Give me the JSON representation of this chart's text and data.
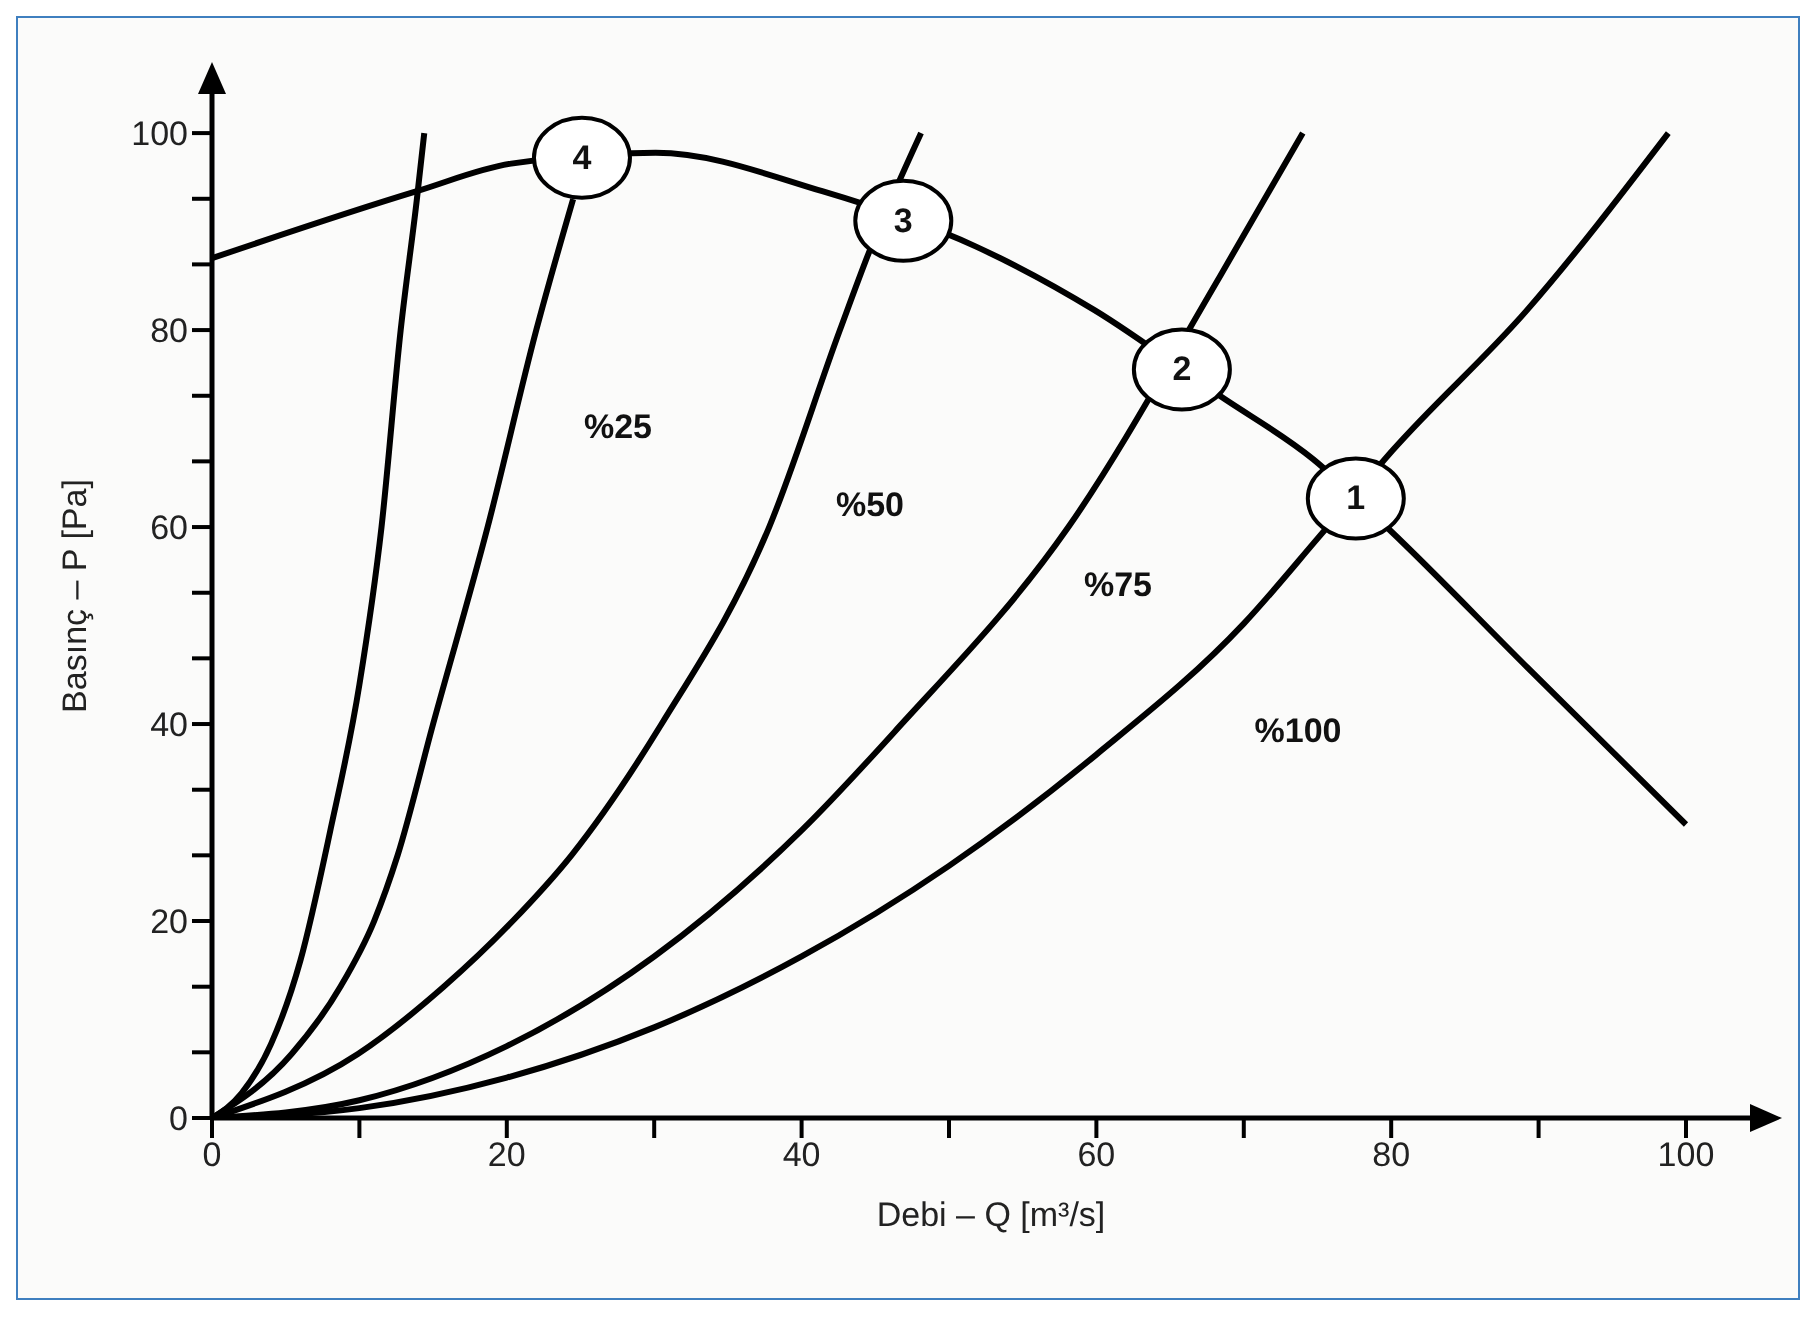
{
  "chart_data": {
    "type": "line",
    "xlabel": "Debi – Q [m³/s]",
    "ylabel": "Basınç – P [Pa]",
    "xlim": [
      0,
      105.7
    ],
    "ylim": [
      0,
      106
    ],
    "xticks": [
      0,
      {
        "value": 10,
        "label": null
      },
      20,
      {
        "value": 30,
        "label": null
      },
      40,
      {
        "value": 50,
        "label": null
      },
      60,
      {
        "value": 70,
        "label": null
      },
      80,
      {
        "value": 90,
        "label": null
      },
      100
    ],
    "yticks": [
      0,
      {
        "value": 6.67,
        "label": null
      },
      {
        "value": 13.33,
        "label": null
      },
      20,
      {
        "value": 26.67,
        "label": null
      },
      {
        "value": 33.33,
        "label": null
      },
      40,
      {
        "value": 46.67,
        "label": null
      },
      {
        "value": 53.33,
        "label": null
      },
      60,
      {
        "value": 66.67,
        "label": null
      },
      {
        "value": 73.33,
        "label": null
      },
      80,
      {
        "value": 86.67,
        "label": null
      },
      {
        "value": 93.33,
        "label": null
      },
      100
    ],
    "grid": false,
    "legend": false,
    "marker": "none",
    "line_style": "solid",
    "series": [
      {
        "color": "#000000",
        "x": [
          0,
          2,
          4,
          6,
          8,
          10,
          11.5,
          12.8,
          13.9,
          14.4
        ],
        "values": [
          0,
          2.5,
          7.5,
          16,
          29,
          44,
          60,
          80,
          93.3,
          100
        ]
      },
      {
        "color": "#000000",
        "x": [
          0,
          5.4,
          8.7,
          11,
          12.6,
          15,
          18.7,
          22,
          24.5
        ],
        "values": [
          0,
          6.5,
          13.3,
          20,
          26.7,
          40,
          60,
          80,
          93.3
        ]
      },
      {
        "color": "#000000",
        "x": [
          0,
          9.9,
          15.7,
          20.4,
          24.4,
          30.5,
          37.8,
          42.6,
          44.6,
          48.1
        ],
        "values": [
          0,
          6.5,
          13.3,
          20,
          26.7,
          40,
          60,
          80,
          88,
          100
        ]
      },
      {
        "color": "#000000",
        "x": [
          0,
          10,
          20,
          30,
          40,
          46.3,
          58.1,
          68.4,
          74
        ],
        "values": [
          0,
          1.8,
          7.3,
          16.4,
          29.2,
          39.2,
          60,
          85.5,
          100
        ]
      },
      {
        "color": "#000000",
        "x": [
          0,
          10,
          20,
          30,
          40,
          50,
          60,
          70,
          75.1,
          80.1,
          89.2,
          98.8
        ],
        "values": [
          0,
          1,
          4.1,
          9.2,
          16.4,
          25.6,
          36.9,
          50.2,
          59,
          67.8,
          82,
          100
        ]
      },
      {
        "color": "#000000",
        "x": [
          0,
          13.9,
          20.3,
          30.1,
          41.4,
          51.8,
          59.9,
          68.4,
          74.7,
          79.9,
          89.2,
          100
        ],
        "values": [
          87.3,
          94.1,
          96.9,
          98,
          94.1,
          88.5,
          82,
          73.3,
          66.9,
          59.7,
          45.8,
          29.8
        ]
      }
    ],
    "annotations": [
      {
        "text": "4",
        "x": 25.1,
        "y": 97.5
      },
      {
        "text": "3",
        "x": 46.9,
        "y": 91.1
      },
      {
        "text": "2",
        "x": 65.8,
        "y": 76
      },
      {
        "text": "1",
        "x": 77.6,
        "y": 62.9
      },
      "%25",
      "%50",
      "%75",
      "%100"
    ]
  }
}
